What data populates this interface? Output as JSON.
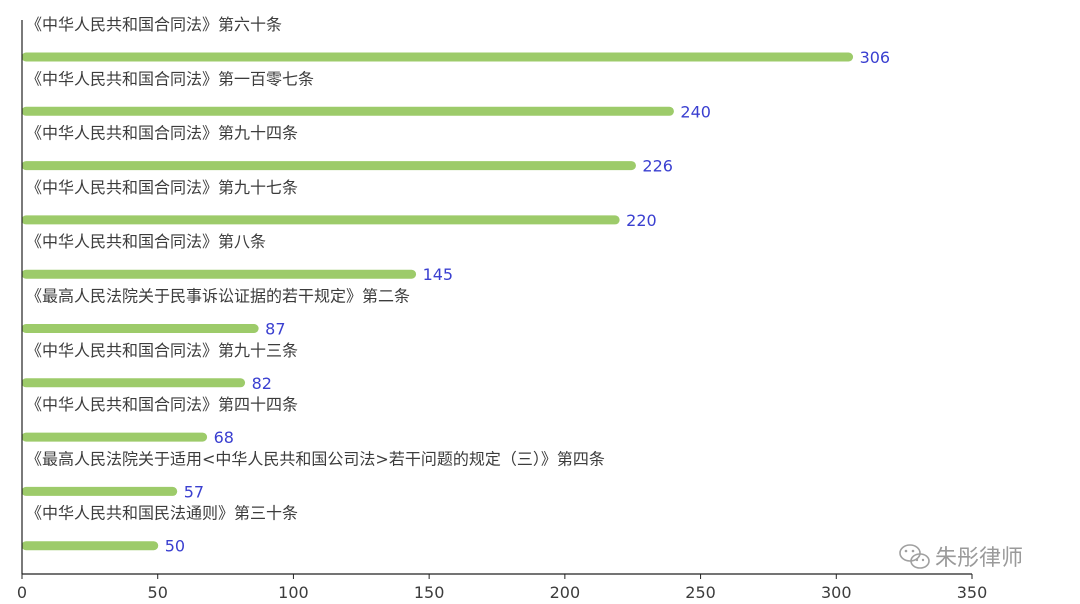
{
  "chart_data": {
    "type": "bar",
    "orientation": "horizontal",
    "categories": [
      "《中华人民共和国合同法》第六十条",
      "《中华人民共和国合同法》第一百零七条",
      "《中华人民共和国合同法》第九十四条",
      "《中华人民共和国合同法》第九十七条",
      "《中华人民共和国合同法》第八条",
      "《最高人民法院关于民事诉讼证据的若干规定》第二条",
      "《中华人民共和国合同法》第九十三条",
      "《中华人民共和国合同法》第四十四条",
      "《最高人民法院关于适用<中华人民共和国公司法>若干问题的规定（三）》第四条",
      "《中华人民共和国民法通则》第三十条"
    ],
    "values": [
      306,
      240,
      226,
      220,
      145,
      87,
      82,
      68,
      57,
      50
    ],
    "xlim": [
      0,
      350
    ],
    "xticks": [
      0,
      50,
      100,
      150,
      200,
      250,
      300,
      350
    ],
    "grid": false,
    "colors": {
      "bar": "#9dcb6a",
      "value_label": "#3a3fd0",
      "axis": "#222222"
    }
  },
  "watermark": {
    "text": "朱彤律师",
    "icon": "wechat-icon"
  }
}
